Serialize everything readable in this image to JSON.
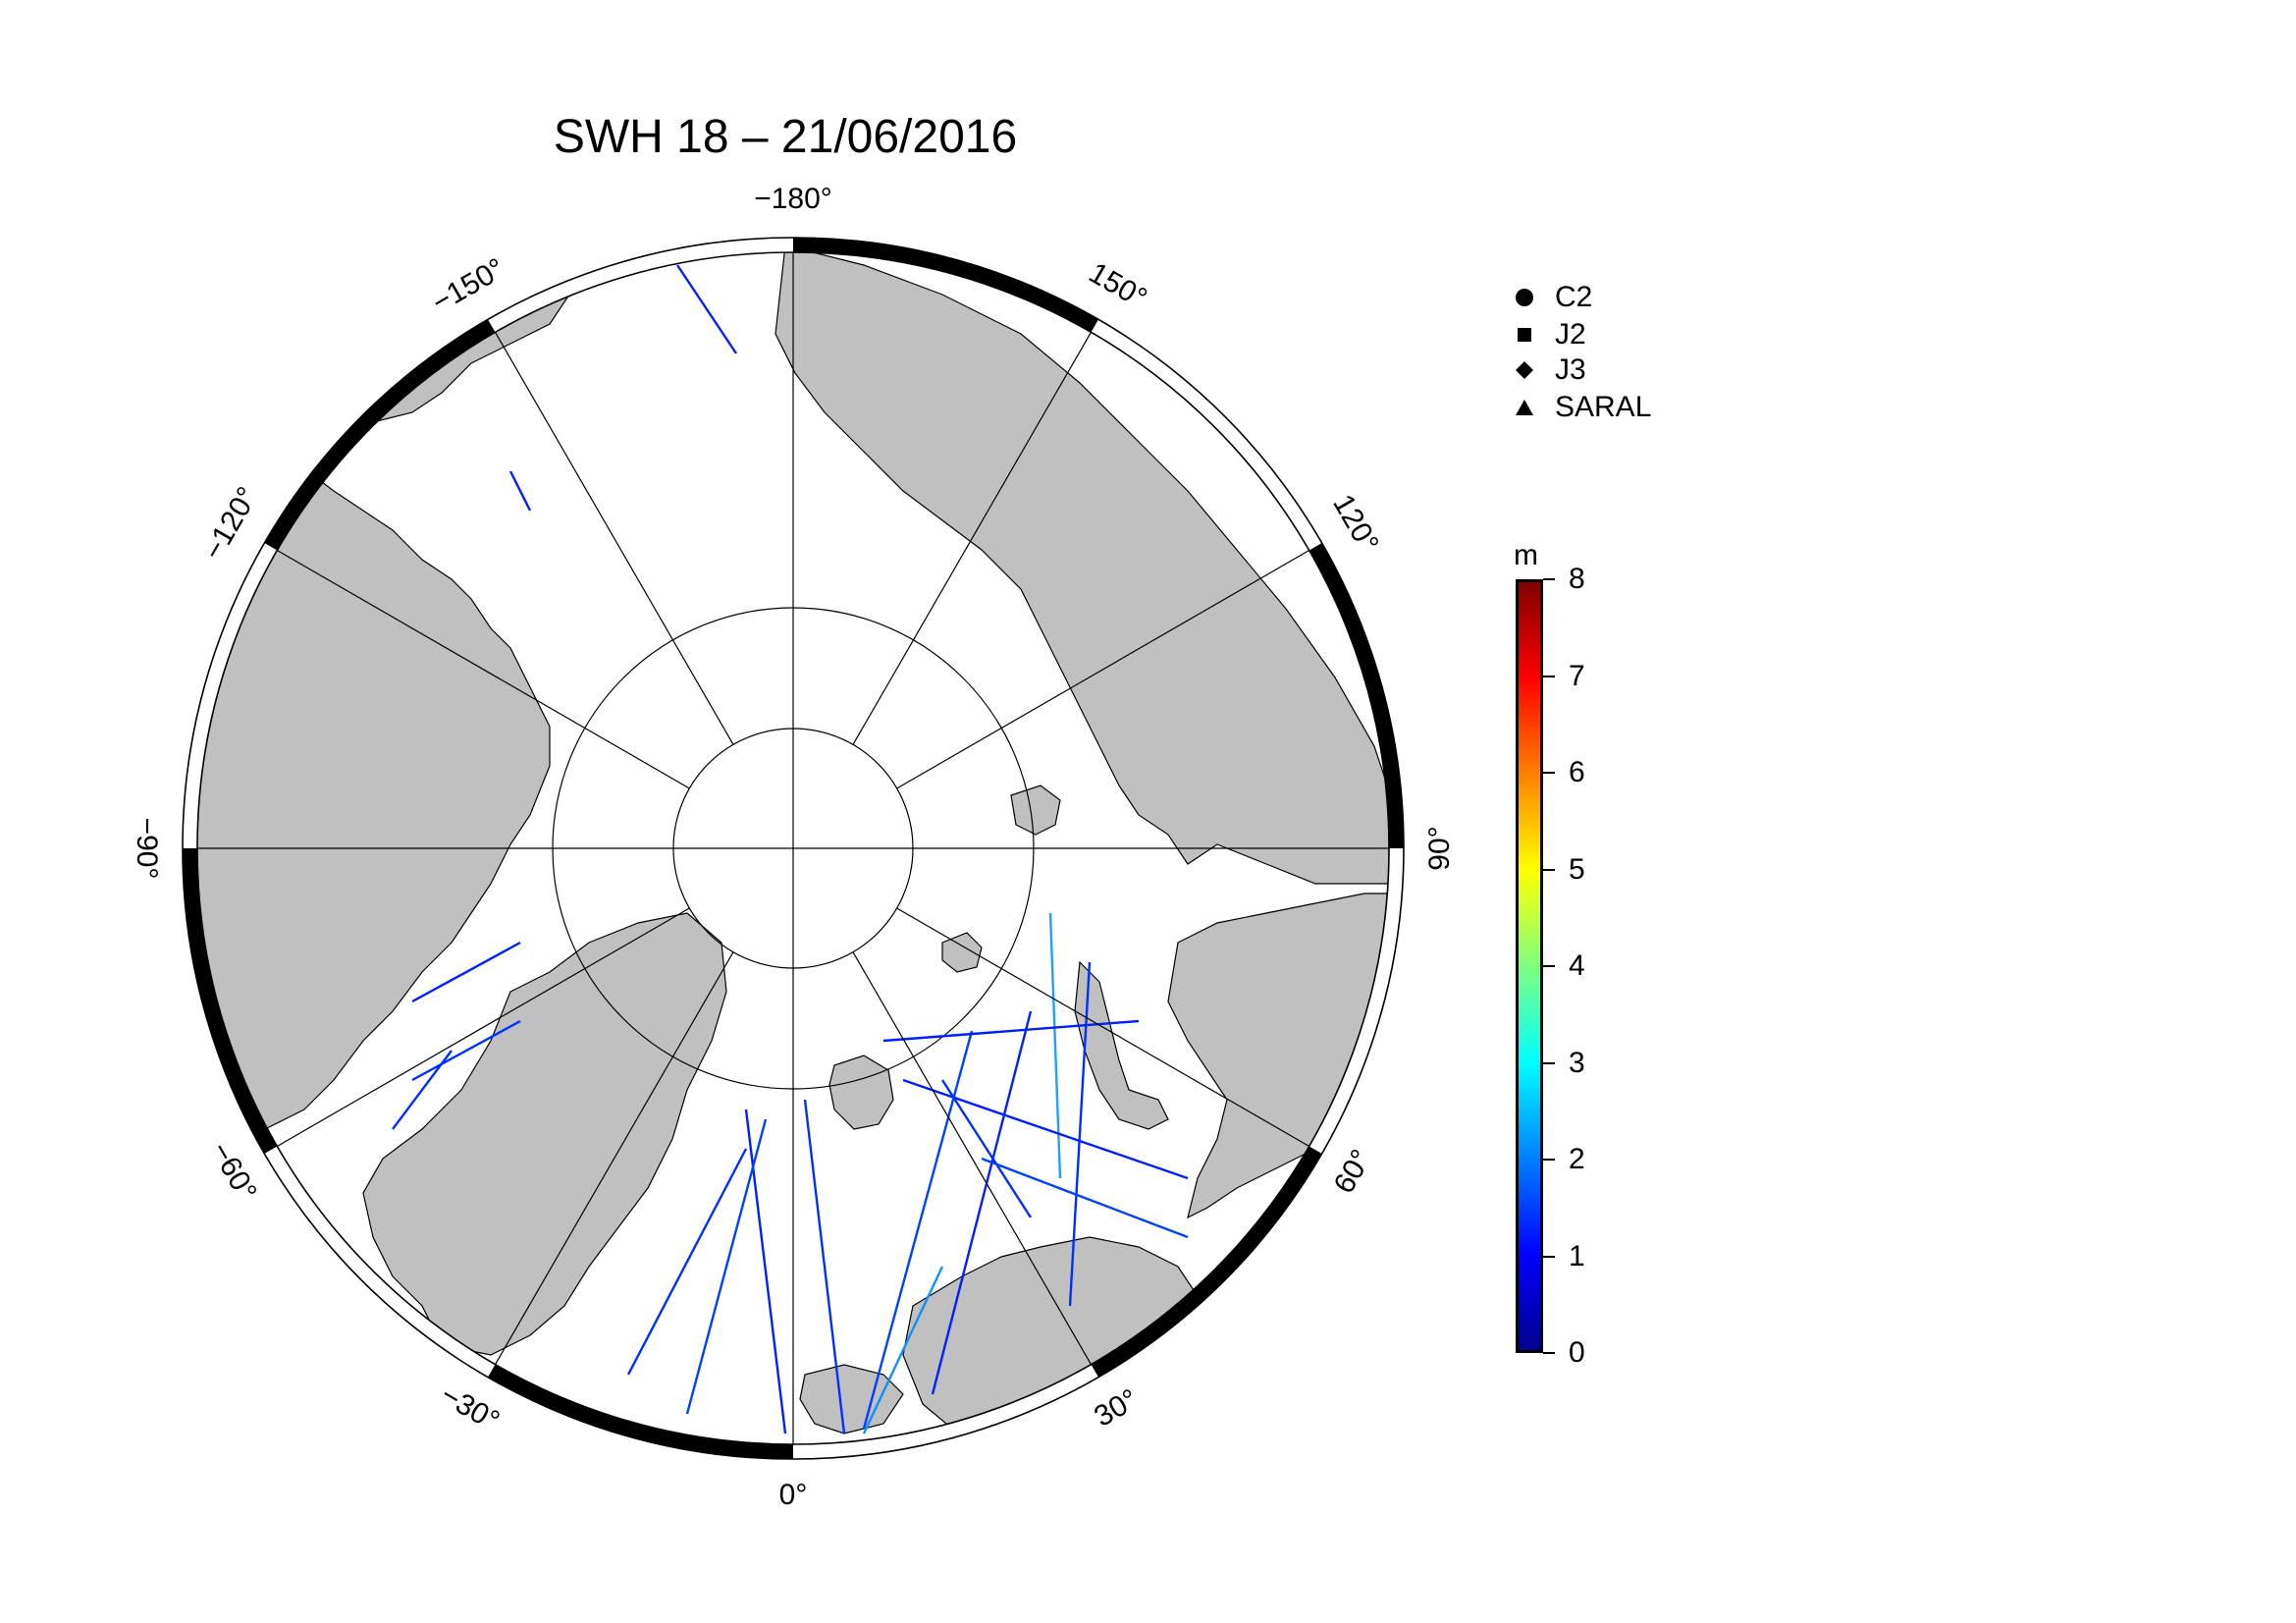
{
  "title": "SWH 18 – 21/06/2016",
  "map": {
    "projection": "north-polar-stereographic",
    "longitude_labels": [
      {
        "value": "−180°",
        "lon": 180
      },
      {
        "value": "150°",
        "lon": 150
      },
      {
        "value": "120°",
        "lon": 120
      },
      {
        "value": "90°",
        "lon": 90
      },
      {
        "value": "60°",
        "lon": 60
      },
      {
        "value": "30°",
        "lon": 30
      },
      {
        "value": "0°",
        "lon": 0
      },
      {
        "value": "−30°",
        "lon": -30
      },
      {
        "value": "−60°",
        "lon": -60
      },
      {
        "value": "−90°",
        "lon": -90
      },
      {
        "value": "−120°",
        "lon": -120
      },
      {
        "value": "−150°",
        "lon": -150
      }
    ],
    "land_color": "#c0c0c0",
    "ocean_color": "#ffffff",
    "graticule_color": "#000000"
  },
  "legend": {
    "items": [
      {
        "label": "C2",
        "symbol": "circle-icon"
      },
      {
        "label": "J2",
        "symbol": "square-icon"
      },
      {
        "label": "J3",
        "symbol": "diamond-icon"
      },
      {
        "label": "SARAL",
        "symbol": "triangle-icon"
      }
    ]
  },
  "colorbar": {
    "unit": "m",
    "min": 0,
    "max": 8,
    "ticks": [
      "0",
      "1",
      "2",
      "3",
      "4",
      "5",
      "6",
      "7",
      "8"
    ],
    "colormap": "jet"
  }
}
